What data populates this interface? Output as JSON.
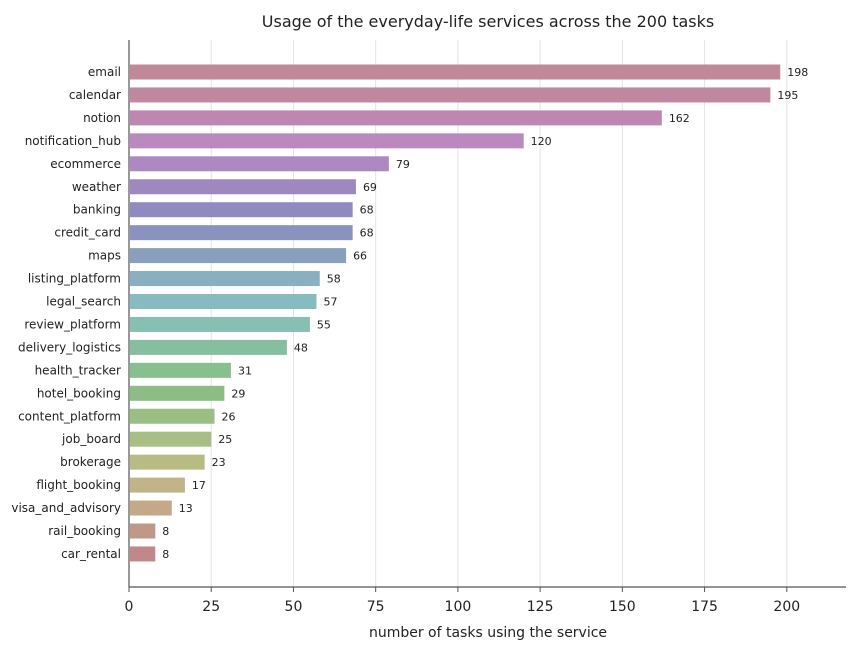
{
  "chart_data": {
    "type": "bar",
    "orientation": "horizontal",
    "title": "Usage of the everyday-life services across the 200 tasks",
    "xlabel": "number of tasks using the service",
    "ylabel": "",
    "xlim": [
      0,
      218
    ],
    "xticks": [
      0,
      25,
      50,
      75,
      100,
      125,
      150,
      175,
      200
    ],
    "grid": "vertical",
    "categories": [
      "email",
      "calendar",
      "notion",
      "notification_hub",
      "ecommerce",
      "weather",
      "banking",
      "credit_card",
      "maps",
      "listing_platform",
      "legal_search",
      "review_platform",
      "delivery_logistics",
      "health_tracker",
      "hotel_booking",
      "content_platform",
      "job_board",
      "brokerage",
      "flight_booking",
      "visa_and_advisory",
      "rail_booking",
      "car_rental"
    ],
    "values": [
      198,
      195,
      162,
      120,
      79,
      69,
      68,
      68,
      66,
      58,
      57,
      55,
      48,
      31,
      29,
      26,
      25,
      23,
      17,
      13,
      8,
      8
    ],
    "colors": [
      "#c08898",
      "#c087a0",
      "#c086b2",
      "#bb88c0",
      "#ae88c2",
      "#9f88c0",
      "#8f8bc0",
      "#8a92bf",
      "#88a0be",
      "#88b0c0",
      "#86bcc0",
      "#87bfb2",
      "#86bfa0",
      "#87bf90",
      "#8cbe84",
      "#9abe84",
      "#a8be84",
      "#b8bc84",
      "#c0b488",
      "#c4a888",
      "#c09888",
      "#c08888"
    ]
  }
}
